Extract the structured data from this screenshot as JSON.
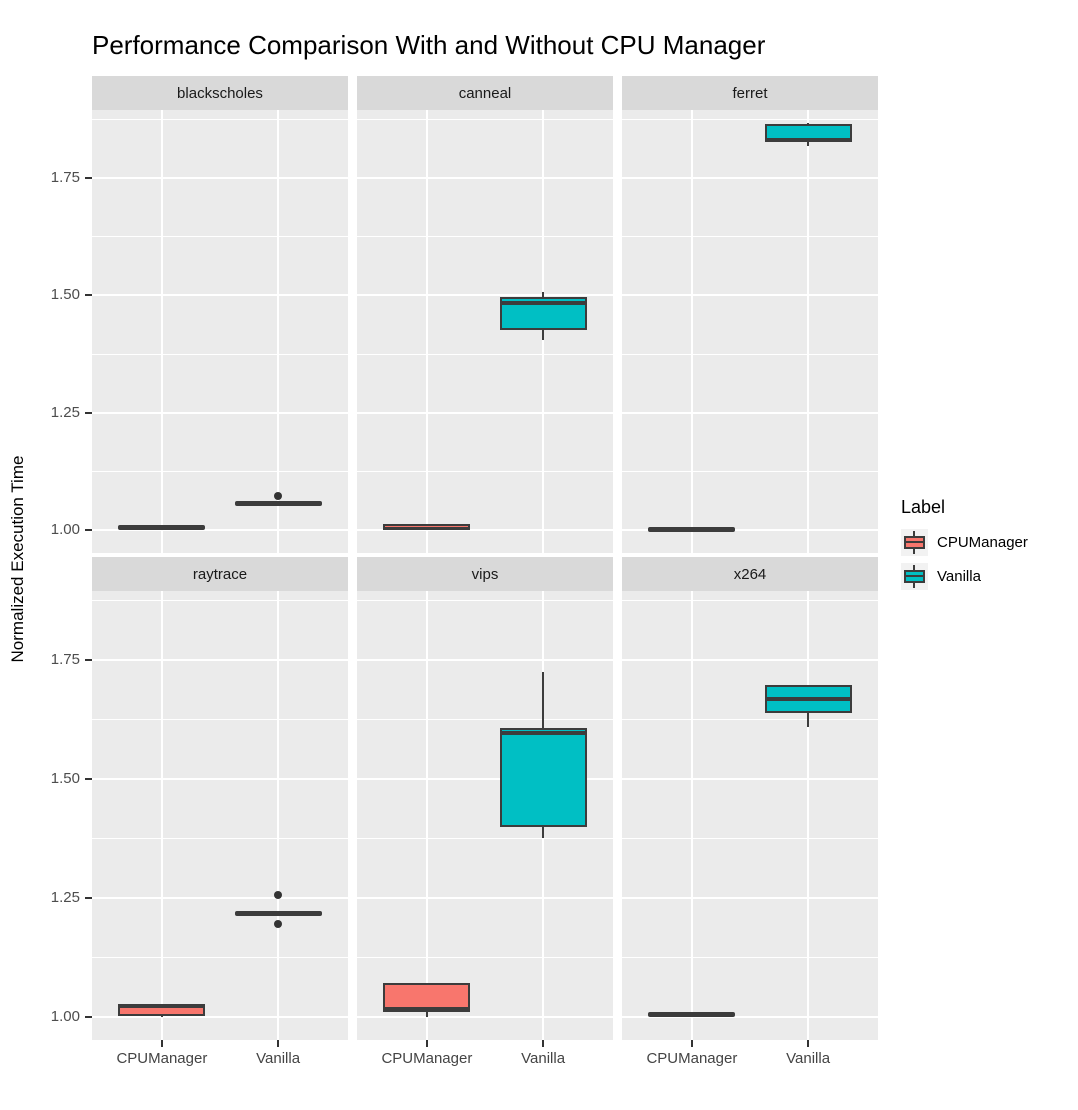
{
  "title": "Performance Comparison With and Without CPU Manager",
  "y_axis": {
    "label": "Normalized Execution Time",
    "tick_labels": [
      "1.75",
      "1.50",
      "1.25",
      "1.00"
    ]
  },
  "x_axis": {
    "groups": [
      "CPUManager",
      "Vanilla"
    ]
  },
  "legend": {
    "title": "Label",
    "entries": [
      {
        "label": "CPUManager",
        "color": "#F8766D"
      },
      {
        "label": "Vanilla",
        "color": "#00BFC4"
      }
    ]
  },
  "colors": {
    "panel_bg": "#EBEBEB",
    "strip_bg": "#D9D9D9",
    "gridline": "#FFFFFF",
    "box_outline": "#3C3C3C",
    "tick_text": "#4D4D4D",
    "axis_label_text": "#444444",
    "strip_text": "#1A1A1A",
    "cpumanager_fill": "#F8766D",
    "vanilla_fill": "#00BFC4",
    "outlier": "#333333"
  },
  "chart_data": {
    "type": "boxplot",
    "faceted": true,
    "title": "Performance Comparison With and Without CPU Manager",
    "ylabel": "Normalized Execution Time",
    "ylim": [
      0.951,
      1.895
    ],
    "y_major_ticks": [
      1.75,
      1.5,
      1.25,
      1.0
    ],
    "y_minor_gridlines": [
      1.875,
      1.625,
      1.375,
      1.125
    ],
    "groups": [
      "CPUManager",
      "Vanilla"
    ],
    "legend_title": "Label",
    "facets": [
      {
        "name": "blackscholes",
        "boxes": [
          {
            "group": "CPUManager",
            "shape": "line",
            "value": 1.005,
            "outliers": []
          },
          {
            "group": "Vanilla",
            "shape": "line",
            "value": 1.057,
            "outliers": [
              1.072
            ]
          }
        ]
      },
      {
        "name": "canneal",
        "boxes": [
          {
            "group": "CPUManager",
            "shape": "box",
            "whisker_low": 1.0,
            "q1": 1.0,
            "median": 1.005,
            "q3": 1.013,
            "whisker_high": 1.013,
            "outliers": []
          },
          {
            "group": "Vanilla",
            "shape": "box",
            "whisker_low": 1.405,
            "q1": 1.427,
            "median": 1.483,
            "q3": 1.497,
            "whisker_high": 1.508,
            "outliers": []
          }
        ]
      },
      {
        "name": "ferret",
        "boxes": [
          {
            "group": "CPUManager",
            "shape": "line",
            "value": 1.001,
            "outliers": []
          },
          {
            "group": "Vanilla",
            "shape": "box",
            "whisker_low": 1.818,
            "q1": 1.826,
            "median": 1.832,
            "q3": 1.866,
            "whisker_high": 1.868,
            "outliers": []
          }
        ]
      },
      {
        "name": "raytrace",
        "boxes": [
          {
            "group": "CPUManager",
            "shape": "box",
            "whisker_low": 1.0,
            "q1": 1.002,
            "median": 1.02,
            "q3": 1.026,
            "whisker_high": 1.026,
            "outliers": []
          },
          {
            "group": "Vanilla",
            "shape": "line",
            "value": 1.218,
            "outliers": [
              1.255,
              1.195
            ]
          }
        ]
      },
      {
        "name": "vips",
        "boxes": [
          {
            "group": "CPUManager",
            "shape": "box",
            "whisker_low": 1.0,
            "q1": 1.01,
            "median": 1.016,
            "q3": 1.07,
            "whisker_high": 1.07,
            "outliers": []
          },
          {
            "group": "Vanilla",
            "shape": "box",
            "whisker_low": 1.375,
            "q1": 1.398,
            "median": 1.597,
            "q3": 1.606,
            "whisker_high": 1.724,
            "outliers": []
          }
        ]
      },
      {
        "name": "x264",
        "boxes": [
          {
            "group": "CPUManager",
            "shape": "line",
            "value": 1.004,
            "outliers": []
          },
          {
            "group": "Vanilla",
            "shape": "box",
            "whisker_low": 1.61,
            "q1": 1.638,
            "median": 1.668,
            "q3": 1.698,
            "whisker_high": 1.698,
            "outliers": []
          }
        ]
      }
    ]
  }
}
